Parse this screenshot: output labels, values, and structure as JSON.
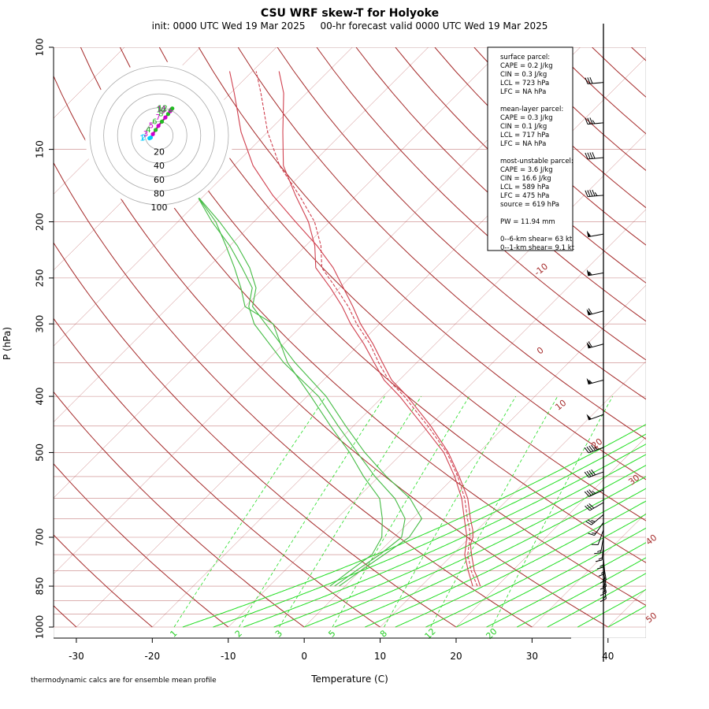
{
  "header": {
    "title": "CSU WRF skew-T for Holyoke",
    "subtitle": "init: 0000 UTC Wed 19 Mar 2025     00-hr forecast valid 0000 UTC Wed 19 Mar 2025"
  },
  "footnote": "thermodynamic calcs are for ensemble mean profile",
  "colors": {
    "isotherm": "#a52a2a",
    "isobar": "#c88080",
    "dry_adiabat": "#a52a2a",
    "moist_adiabat": "#22dd22",
    "mixing_ratio": "#22dd22",
    "temperature": "#d0404f",
    "dewpoint": "#44bb44",
    "hodo_line": "#aa1188",
    "barb": "#000000"
  },
  "info_box": {
    "lines": [
      "surface parcel:",
      "CAPE = 0.2 J/kg",
      "CIN = 0.3 J/kg",
      "LCL = 723 hPa",
      "LFC = NA hPa",
      "",
      "mean-layer parcel:",
      "CAPE = 0.3 J/kg",
      "CIN = 0.1 J/kg",
      "LCL = 717 hPa",
      "LFC = NA hPa",
      "",
      "most-unstable parcel:",
      "CAPE = 3.6 J/kg",
      "CIN = 16.6 J/kg",
      "LCL = 589 hPa",
      "LFC = 475 hPa",
      "source = 619 hPa",
      "",
      "PW =  11.94 mm",
      "",
      "0--6-km shear= 63 kt",
      "0--1-km shear= 9.1 kt"
    ]
  },
  "chart_data": {
    "type": "line",
    "subtype": "skew-T log-P",
    "xlabel": "Temperature (C)",
    "ylabel": "P (hPa)",
    "x_ticks": [
      -30,
      -20,
      -10,
      0,
      10,
      20,
      30,
      40
    ],
    "y_ticks": [
      100,
      150,
      200,
      250,
      300,
      400,
      500,
      700,
      850,
      1000
    ],
    "pressure_range_hPa": [
      100,
      1000
    ],
    "temperature_range_at_1000hPa_C": [
      -33,
      45
    ],
    "isotherm_labels": [
      "-10",
      "0",
      "10",
      "20",
      "30",
      "40",
      "50"
    ],
    "mixing_ratio_labels": [
      "1",
      "2",
      "3",
      "5",
      "8",
      "12",
      "20"
    ],
    "series": [
      {
        "role": "temperature",
        "members": [
          {
            "points": [
              [
                850,
                17.8
              ],
              [
                820,
                16.2
              ],
              [
                800,
                15.0
              ],
              [
                750,
                12.5
              ],
              [
                720,
                11.0
              ],
              [
                700,
                10.4
              ],
              [
                680,
                9.4
              ],
              [
                650,
                7.6
              ],
              [
                600,
                4.6
              ],
              [
                550,
                0.6
              ],
              [
                500,
                -4.0
              ],
              [
                450,
                -9.8
              ],
              [
                400,
                -16.8
              ],
              [
                375,
                -21.0
              ],
              [
                350,
                -24.5
              ],
              [
                325,
                -28.2
              ],
              [
                300,
                -32.5
              ],
              [
                280,
                -35.8
              ],
              [
                260,
                -39.5
              ],
              [
                240,
                -43.5
              ],
              [
                220,
                -48.5
              ],
              [
                200,
                -54.5
              ],
              [
                180,
                -61.0
              ],
              [
                160,
                -67.5
              ],
              [
                140,
                -73.5
              ],
              [
                120,
                -79.5
              ],
              [
                110,
                -83.0
              ]
            ]
          },
          {
            "points": [
              [
                850,
                17.4
              ],
              [
                800,
                14.6
              ],
              [
                750,
                12.0
              ],
              [
                700,
                10.0
              ],
              [
                680,
                9.0
              ],
              [
                650,
                7.2
              ],
              [
                600,
                4.2
              ],
              [
                550,
                0.4
              ],
              [
                500,
                -4.2
              ],
              [
                450,
                -10.2
              ],
              [
                400,
                -17.2
              ],
              [
                375,
                -21.4
              ],
              [
                350,
                -25.0
              ],
              [
                325,
                -28.6
              ],
              [
                300,
                -33.0
              ],
              [
                280,
                -36.4
              ],
              [
                260,
                -40.5
              ],
              [
                240,
                -45.0
              ],
              [
                220,
                -48.0
              ],
              [
                200,
                -52.0
              ],
              [
                180,
                -57.5
              ],
              [
                160,
                -64.0
              ],
              [
                140,
                -70.0
              ],
              [
                120,
                -76.0
              ],
              [
                110,
                -79.5
              ]
            ]
          },
          {
            "points": [
              [
                850,
                16.8
              ],
              [
                800,
                14.2
              ],
              [
                750,
                11.6
              ],
              [
                700,
                9.6
              ],
              [
                650,
                6.8
              ],
              [
                600,
                3.8
              ],
              [
                550,
                0.0
              ],
              [
                500,
                -4.6
              ],
              [
                450,
                -10.8
              ],
              [
                400,
                -17.8
              ],
              [
                375,
                -22.0
              ],
              [
                350,
                -25.6
              ],
              [
                325,
                -29.4
              ],
              [
                300,
                -33.8
              ],
              [
                280,
                -37.2
              ],
              [
                260,
                -41.2
              ],
              [
                240,
                -45.8
              ],
              [
                220,
                -48.8
              ],
              [
                200,
                -52.8
              ],
              [
                180,
                -58.0
              ],
              [
                160,
                -63.5
              ],
              [
                140,
                -68.0
              ],
              [
                120,
                -73.0
              ],
              [
                110,
                -76.5
              ]
            ]
          }
        ]
      },
      {
        "role": "dewpoint",
        "members": [
          {
            "points": [
              [
                850,
                -0.8
              ],
              [
                800,
                0.0
              ],
              [
                750,
                1.0
              ],
              [
                700,
                2.0
              ],
              [
                650,
                1.2
              ],
              [
                600,
                -3.0
              ],
              [
                550,
                -9.0
              ],
              [
                500,
                -15.0
              ],
              [
                450,
                -21.0
              ],
              [
                400,
                -27.5
              ],
              [
                350,
                -36.0
              ],
              [
                300,
                -45.0
              ],
              [
                280,
                -49.0
              ],
              [
                260,
                -51.0
              ],
              [
                240,
                -54.5
              ],
              [
                220,
                -59.0
              ],
              [
                200,
                -64.5
              ],
              [
                180,
                -71.0
              ]
            ]
          },
          {
            "points": [
              [
                850,
                -1.4
              ],
              [
                800,
                -0.6
              ],
              [
                750,
                0.4
              ],
              [
                700,
                1.0
              ],
              [
                650,
                -1.0
              ],
              [
                600,
                -5.0
              ],
              [
                550,
                -10.5
              ],
              [
                500,
                -16.0
              ],
              [
                450,
                -22.0
              ],
              [
                400,
                -28.5
              ],
              [
                350,
                -37.5
              ],
              [
                300,
                -46.5
              ],
              [
                280,
                -49.5
              ],
              [
                260,
                -51.5
              ],
              [
                240,
                -55.5
              ],
              [
                220,
                -60.0
              ],
              [
                200,
                -65.5
              ],
              [
                180,
                -71.0
              ]
            ]
          },
          {
            "points": [
              [
                850,
                -2.0
              ],
              [
                800,
                -1.4
              ],
              [
                750,
                -0.6
              ],
              [
                700,
                -1.6
              ],
              [
                650,
                -4.0
              ],
              [
                600,
                -7.0
              ],
              [
                550,
                -12.0
              ],
              [
                500,
                -17.0
              ],
              [
                450,
                -23.0
              ],
              [
                400,
                -29.5
              ],
              [
                350,
                -37.0
              ],
              [
                300,
                -44.0
              ],
              [
                280,
                -50.0
              ],
              [
                260,
                -53.0
              ],
              [
                240,
                -56.5
              ],
              [
                220,
                -60.5
              ],
              [
                200,
                -65.0
              ],
              [
                180,
                -71.0
              ]
            ]
          }
        ]
      }
    ],
    "wind_barbs": {
      "levels_hPa": [
        115,
        135,
        155,
        180,
        210,
        245,
        285,
        325,
        375,
        430,
        490,
        540,
        580,
        610,
        640,
        660,
        680,
        700,
        720,
        740,
        760,
        780,
        800,
        820,
        840
      ],
      "direction_deg": [
        265,
        265,
        265,
        265,
        260,
        260,
        255,
        255,
        255,
        250,
        250,
        250,
        245,
        240,
        230,
        215,
        200,
        190,
        185,
        180,
        175,
        170,
        170,
        170,
        170
      ],
      "speed_kt": [
        30,
        35,
        40,
        45,
        50,
        55,
        60,
        60,
        55,
        50,
        45,
        40,
        35,
        30,
        25,
        15,
        12,
        15,
        15,
        15,
        15,
        15,
        15,
        15,
        15
      ]
    },
    "hodograph": {
      "ring_labels": [
        "20",
        "40",
        "60",
        "80",
        "100"
      ],
      "ring_speed_kt": [
        20,
        40,
        60,
        80,
        100
      ],
      "level_labels": [
        "1",
        "2",
        "3",
        "4",
        "5",
        "6",
        "7",
        "8",
        "9",
        "10",
        "11",
        "12"
      ],
      "u_kt": [
        -14,
        -12,
        -9,
        -5,
        -1,
        4,
        9,
        13,
        16,
        17,
        18,
        19
      ],
      "v_kt": [
        -4,
        -3,
        2,
        8,
        14,
        20,
        26,
        31,
        35,
        37,
        38,
        39
      ]
    }
  }
}
